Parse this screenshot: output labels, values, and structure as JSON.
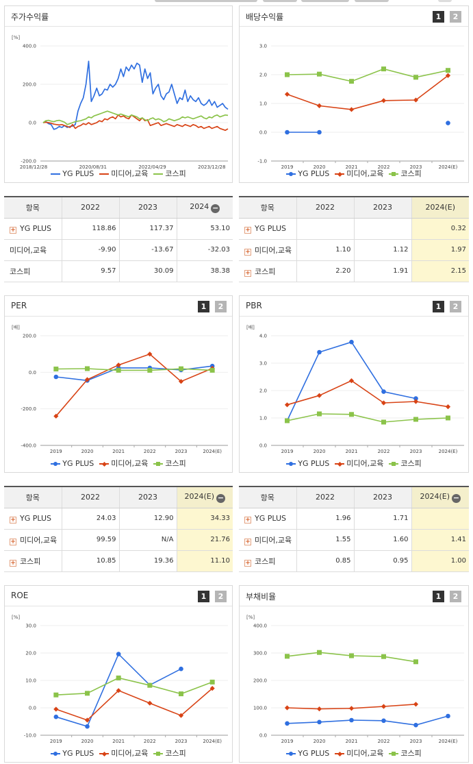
{
  "colors": {
    "blue": "#2f6fe0",
    "red": "#d84315",
    "green": "#8bc34a"
  },
  "legend": [
    {
      "name": "YG PLUS",
      "color": "#2f6fe0",
      "marker": "circle"
    },
    {
      "name": "미디어,교육",
      "color": "#d84315",
      "marker": "diamond"
    },
    {
      "name": "코스피",
      "color": "#8bc34a",
      "marker": "square"
    }
  ],
  "pager": {
    "p1": "1",
    "p2": "2"
  },
  "chart_data": [
    {
      "id": "price_return",
      "title": "주가수익률",
      "type": "line",
      "unit": "[%]",
      "ylim": [
        -200,
        400
      ],
      "yticks": [
        "400.0",
        "200.0",
        "0.0",
        "-200.0"
      ],
      "xtick_labels": [
        "2018/12/28",
        "2020/08/31",
        "2022/04/29",
        "2023/12/28"
      ],
      "series": [
        {
          "name": "YG PLUS",
          "values": [
            0,
            5,
            -5,
            -10,
            -35,
            -30,
            -20,
            -25,
            -15,
            -25,
            -20,
            -18,
            -10,
            60,
            100,
            130,
            200,
            320,
            110,
            140,
            180,
            140,
            150,
            175,
            170,
            200,
            185,
            200,
            230,
            280,
            240,
            290,
            270,
            300,
            280,
            310,
            300,
            210,
            280,
            230,
            260,
            150,
            180,
            200,
            140,
            120,
            150,
            160,
            200,
            150,
            100,
            130,
            120,
            170,
            110,
            140,
            120,
            110,
            130,
            100,
            90,
            100,
            120,
            90,
            110,
            80,
            90,
            100,
            80,
            70
          ]
        },
        {
          "name": "미디어,교육",
          "values": [
            0,
            2,
            0,
            -3,
            -8,
            -10,
            -12,
            -10,
            -15,
            -20,
            -25,
            -10,
            -30,
            -20,
            -15,
            -5,
            -10,
            0,
            -10,
            -5,
            0,
            10,
            5,
            20,
            15,
            25,
            30,
            20,
            40,
            30,
            35,
            25,
            20,
            40,
            30,
            20,
            10,
            25,
            10,
            15,
            -15,
            -10,
            -5,
            0,
            -15,
            -10,
            -5,
            -10,
            -15,
            -20,
            -10,
            -15,
            -20,
            -10,
            -15,
            -20,
            -10,
            -15,
            -25,
            -20,
            -30,
            -25,
            -20,
            -30,
            -25,
            -20,
            -30,
            -35,
            -40,
            -32
          ]
        },
        {
          "name": "코스피",
          "values": [
            0,
            10,
            12,
            8,
            5,
            10,
            12,
            8,
            2,
            -10,
            -5,
            0,
            5,
            8,
            10,
            15,
            20,
            30,
            25,
            35,
            40,
            45,
            50,
            55,
            60,
            55,
            50,
            45,
            40,
            45,
            40,
            35,
            30,
            40,
            35,
            30,
            20,
            25,
            15,
            10,
            20,
            25,
            15,
            20,
            15,
            5,
            10,
            20,
            15,
            10,
            15,
            20,
            30,
            25,
            30,
            25,
            20,
            25,
            30,
            35,
            25,
            20,
            30,
            25,
            35,
            40,
            30,
            35,
            40,
            38
          ]
        }
      ]
    },
    {
      "id": "dividend_yield",
      "title": "배당수익률",
      "type": "line",
      "ylim": [
        -1,
        3
      ],
      "yticks": [
        "3.0",
        "2.0",
        "1.0",
        "0.0",
        "-1.0"
      ],
      "categories": [
        "2019",
        "2020",
        "2021",
        "2022",
        "2023",
        "2024(E)"
      ],
      "series": [
        {
          "name": "YG PLUS",
          "values": [
            0.0,
            0.0,
            null,
            null,
            null,
            0.32
          ]
        },
        {
          "name": "미디어,교육",
          "values": [
            1.32,
            0.92,
            0.79,
            1.1,
            1.12,
            1.97
          ]
        },
        {
          "name": "코스피",
          "values": [
            2.0,
            2.02,
            1.77,
            2.2,
            1.91,
            2.15
          ]
        }
      ]
    },
    {
      "id": "per",
      "title": "PER",
      "type": "line",
      "unit": "[배]",
      "ylim": [
        -400,
        200
      ],
      "yticks": [
        "200.0",
        "0.0",
        "-200.0",
        "-400.0"
      ],
      "categories": [
        "2019",
        "2020",
        "2021",
        "2022",
        "2023",
        "2024(E)"
      ],
      "series": [
        {
          "name": "YG PLUS",
          "values": [
            -25,
            -45,
            24,
            24.03,
            12.9,
            34.33
          ]
        },
        {
          "name": "미디어,교육",
          "values": [
            -240,
            -40,
            40,
            99.59,
            -50,
            21.76
          ]
        },
        {
          "name": "코스피",
          "values": [
            18,
            20,
            11,
            10.85,
            19.36,
            11.1
          ]
        }
      ]
    },
    {
      "id": "pbr",
      "title": "PBR",
      "type": "line",
      "unit": "[배]",
      "ylim": [
        0,
        4
      ],
      "yticks": [
        "4.0",
        "3.0",
        "2.0",
        "1.0",
        "0.0"
      ],
      "categories": [
        "2019",
        "2020",
        "2021",
        "2022",
        "2023",
        "2024(E)"
      ],
      "series": [
        {
          "name": "YG PLUS",
          "values": [
            0.9,
            3.4,
            3.77,
            1.96,
            1.71,
            null
          ]
        },
        {
          "name": "미디어,교육",
          "values": [
            1.48,
            1.82,
            2.36,
            1.55,
            1.6,
            1.41
          ]
        },
        {
          "name": "코스피",
          "values": [
            0.9,
            1.15,
            1.13,
            0.85,
            0.95,
            1.0
          ]
        }
      ]
    },
    {
      "id": "roe",
      "title": "ROE",
      "type": "line",
      "unit": "[%]",
      "ylim": [
        -10,
        30
      ],
      "yticks": [
        "30.0",
        "20.0",
        "10.0",
        "0.0",
        "-10.0"
      ],
      "categories": [
        "2019",
        "2020",
        "2021",
        "2022",
        "2023",
        "2024(E)"
      ],
      "series": [
        {
          "name": "YG PLUS",
          "values": [
            -3.3,
            -6.8,
            19.6,
            8.3,
            14.2,
            null
          ]
        },
        {
          "name": "미디어,교육",
          "values": [
            -0.5,
            -4.5,
            6.3,
            1.7,
            -2.8,
            7.1
          ]
        },
        {
          "name": "코스피",
          "values": [
            4.7,
            5.3,
            10.9,
            8.2,
            5.1,
            9.4
          ]
        }
      ]
    },
    {
      "id": "debt_ratio",
      "title": "부채비율",
      "type": "line",
      "unit": "[%]",
      "ylim": [
        0,
        400
      ],
      "yticks": [
        "400.0",
        "300.0",
        "200.0",
        "100.0",
        "0.0"
      ],
      "categories": [
        "2019",
        "2020",
        "2021",
        "2022",
        "2023",
        "2024(E)"
      ],
      "series": [
        {
          "name": "YG PLUS",
          "values": [
            43,
            48,
            55,
            53,
            37,
            70
          ]
        },
        {
          "name": "미디어,교육",
          "values": [
            100,
            96,
            98,
            105,
            113,
            null
          ]
        },
        {
          "name": "코스피",
          "values": [
            288,
            302,
            290,
            287,
            268,
            null
          ]
        }
      ]
    }
  ],
  "tables": {
    "price_return": {
      "header": [
        "항목",
        "2022",
        "2023",
        "2024"
      ],
      "rows": [
        {
          "name": "YG PLUS",
          "plus": true,
          "cells": [
            "118.86",
            "117.37",
            "53.10"
          ]
        },
        {
          "name": "미디어,교육",
          "plus": false,
          "cells": [
            "-9.90",
            "-13.67",
            "-32.03"
          ]
        },
        {
          "name": "코스피",
          "plus": false,
          "cells": [
            "9.57",
            "30.09",
            "38.38"
          ]
        }
      ]
    },
    "dividend_yield": {
      "header": [
        "항목",
        "2022",
        "2023",
        "2024(E)"
      ],
      "rows": [
        {
          "name": "YG PLUS",
          "plus": true,
          "cells": [
            "",
            "",
            "0.32"
          ]
        },
        {
          "name": "미디어,교육",
          "plus": true,
          "cells": [
            "1.10",
            "1.12",
            "1.97"
          ]
        },
        {
          "name": "코스피",
          "plus": true,
          "cells": [
            "2.20",
            "1.91",
            "2.15"
          ]
        }
      ]
    },
    "per": {
      "header": [
        "항목",
        "2022",
        "2023",
        "2024(E)"
      ],
      "rows": [
        {
          "name": "YG PLUS",
          "plus": true,
          "cells": [
            "24.03",
            "12.90",
            "34.33"
          ]
        },
        {
          "name": "미디어,교육",
          "plus": true,
          "cells": [
            "99.59",
            "N/A",
            "21.76"
          ]
        },
        {
          "name": "코스피",
          "plus": true,
          "cells": [
            "10.85",
            "19.36",
            "11.10"
          ]
        }
      ]
    },
    "pbr": {
      "header": [
        "항목",
        "2022",
        "2023",
        "2024(E)"
      ],
      "rows": [
        {
          "name": "YG PLUS",
          "plus": true,
          "cells": [
            "1.96",
            "1.71",
            ""
          ]
        },
        {
          "name": "미디어,교육",
          "plus": true,
          "cells": [
            "1.55",
            "1.60",
            "1.41"
          ]
        },
        {
          "name": "코스피",
          "plus": true,
          "cells": [
            "0.85",
            "0.95",
            "1.00"
          ]
        }
      ]
    }
  }
}
